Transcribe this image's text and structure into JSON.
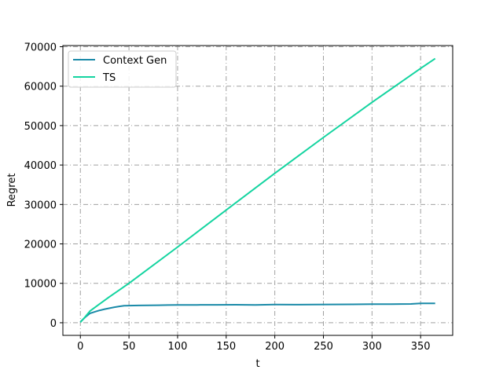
{
  "chart_data": {
    "type": "line",
    "title": "",
    "xlabel": "t",
    "ylabel": "Regret",
    "xlim": [
      -18,
      383
    ],
    "ylim": [
      -3200,
      70300
    ],
    "xticks": [
      0,
      50,
      100,
      150,
      200,
      250,
      300,
      350
    ],
    "yticks": [
      0,
      10000,
      20000,
      30000,
      40000,
      50000,
      60000,
      70000
    ],
    "grid": true,
    "legend_position": "upper-left",
    "series": [
      {
        "name": "Context Gen",
        "color": "#1a8aa8",
        "x": [
          0,
          5,
          10,
          15,
          20,
          25,
          30,
          35,
          40,
          45,
          50,
          60,
          70,
          80,
          90,
          100,
          120,
          140,
          160,
          180,
          200,
          220,
          240,
          260,
          280,
          300,
          320,
          340,
          350,
          365
        ],
        "y": [
          200,
          1400,
          2400,
          2800,
          3150,
          3450,
          3700,
          3950,
          4150,
          4300,
          4350,
          4380,
          4400,
          4450,
          4480,
          4500,
          4520,
          4540,
          4560,
          4520,
          4600,
          4580,
          4620,
          4640,
          4660,
          4700,
          4720,
          4760,
          4900,
          4900
        ]
      },
      {
        "name": "TS",
        "color": "#14d4a0",
        "x": [
          0,
          5,
          10,
          20,
          30,
          40,
          50,
          100,
          150,
          200,
          250,
          300,
          350,
          365
        ],
        "y": [
          100,
          1500,
          3000,
          4800,
          6600,
          8300,
          10000,
          19200,
          28600,
          37900,
          47000,
          55900,
          64500,
          67000
        ]
      }
    ]
  }
}
